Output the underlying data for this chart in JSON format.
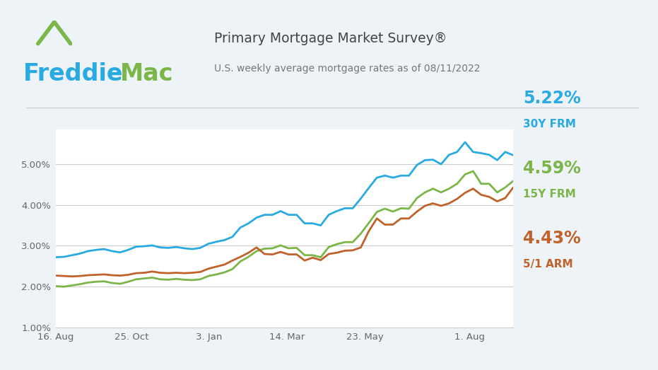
{
  "title_main": "Primary Mortgage Market Survey®",
  "title_sub": "U.S. weekly average mortgage rates as of 08/11/2022",
  "background_color": "#eef3f7",
  "plot_background": "#ffffff",
  "ylim": [
    1.0,
    5.85
  ],
  "yticks": [
    1.0,
    2.0,
    3.0,
    4.0,
    5.0
  ],
  "ytick_labels": [
    "1.00%",
    "2.00%",
    "3.00%",
    "4.00%",
    "5.00%"
  ],
  "xtick_labels": [
    "16. Aug",
    "25. Oct",
    "3. Jan",
    "14. Mar",
    "23. May",
    "1. Aug"
  ],
  "xtick_positions": [
    0,
    0.165,
    0.335,
    0.505,
    0.675,
    0.905
  ],
  "color_30y": "#29aae2",
  "color_15y": "#7ab648",
  "color_arm": "#c0622a",
  "freddie_blue": "#29aae2",
  "freddie_green": "#7ab648",
  "label_30y": "5.22%",
  "label_15y": "4.59%",
  "label_arm": "4.43%",
  "label_30y_sub": "30Y FRM",
  "label_15y_sub": "15Y FRM",
  "label_arm_sub": "5/1 ARM",
  "series_30y": [
    2.72,
    2.73,
    2.77,
    2.81,
    2.87,
    2.9,
    2.92,
    2.87,
    2.84,
    2.9,
    2.98,
    2.99,
    3.01,
    2.96,
    2.95,
    2.97,
    2.94,
    2.92,
    2.95,
    3.05,
    3.1,
    3.14,
    3.22,
    3.45,
    3.55,
    3.69,
    3.76,
    3.76,
    3.85,
    3.76,
    3.76,
    3.55,
    3.55,
    3.5,
    3.76,
    3.85,
    3.92,
    3.92,
    4.16,
    4.42,
    4.67,
    4.72,
    4.67,
    4.72,
    4.72,
    4.98,
    5.1,
    5.11,
    5.0,
    5.23,
    5.3,
    5.54,
    5.3,
    5.27,
    5.23,
    5.1,
    5.3,
    5.22
  ],
  "series_15y": [
    2.01,
    2.0,
    2.03,
    2.06,
    2.1,
    2.12,
    2.13,
    2.09,
    2.07,
    2.12,
    2.18,
    2.2,
    2.22,
    2.18,
    2.17,
    2.19,
    2.17,
    2.16,
    2.18,
    2.26,
    2.3,
    2.35,
    2.43,
    2.62,
    2.73,
    2.87,
    2.93,
    2.94,
    3.01,
    2.94,
    2.95,
    2.77,
    2.77,
    2.72,
    2.97,
    3.04,
    3.09,
    3.09,
    3.3,
    3.56,
    3.83,
    3.91,
    3.84,
    3.92,
    3.91,
    4.17,
    4.31,
    4.4,
    4.31,
    4.4,
    4.52,
    4.75,
    4.83,
    4.52,
    4.52,
    4.31,
    4.43,
    4.59
  ],
  "series_arm": [
    2.27,
    2.26,
    2.25,
    2.26,
    2.28,
    2.29,
    2.3,
    2.28,
    2.27,
    2.29,
    2.33,
    2.34,
    2.37,
    2.34,
    2.33,
    2.34,
    2.33,
    2.34,
    2.36,
    2.44,
    2.49,
    2.54,
    2.64,
    2.73,
    2.83,
    2.96,
    2.8,
    2.79,
    2.85,
    2.79,
    2.79,
    2.64,
    2.71,
    2.65,
    2.8,
    2.83,
    2.88,
    2.89,
    2.96,
    3.36,
    3.67,
    3.52,
    3.52,
    3.67,
    3.67,
    3.84,
    3.98,
    4.04,
    3.98,
    4.04,
    4.15,
    4.3,
    4.4,
    4.25,
    4.2,
    4.09,
    4.17,
    4.43
  ]
}
